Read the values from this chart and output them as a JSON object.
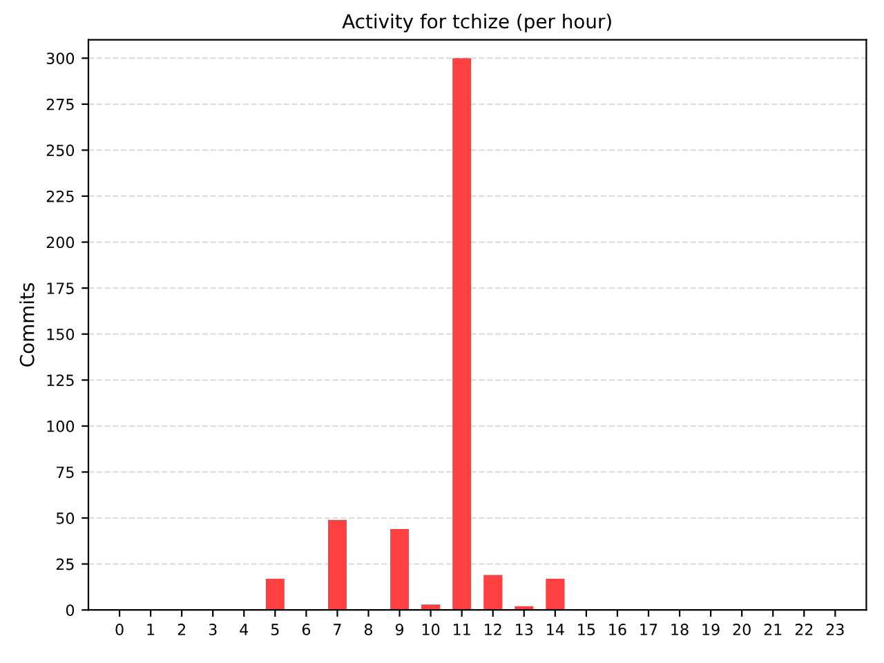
{
  "chart_data": {
    "type": "bar",
    "title": "Activity for tchize (per hour)",
    "ylabel": "Commits",
    "categories": [
      "0",
      "1",
      "2",
      "3",
      "4",
      "5",
      "6",
      "7",
      "8",
      "9",
      "10",
      "11",
      "12",
      "13",
      "14",
      "15",
      "16",
      "17",
      "18",
      "19",
      "20",
      "21",
      "22",
      "23"
    ],
    "values": [
      0,
      0,
      0,
      0,
      0,
      17,
      0,
      49,
      0,
      44,
      3,
      300,
      19,
      2,
      17,
      0,
      0,
      0,
      0,
      0,
      0,
      0,
      0,
      0
    ],
    "color": "#ff4040",
    "ylim": [
      0,
      310
    ],
    "yticks": [
      0,
      25,
      50,
      75,
      100,
      125,
      150,
      175,
      200,
      225,
      250,
      275,
      300
    ],
    "grid": "y"
  }
}
